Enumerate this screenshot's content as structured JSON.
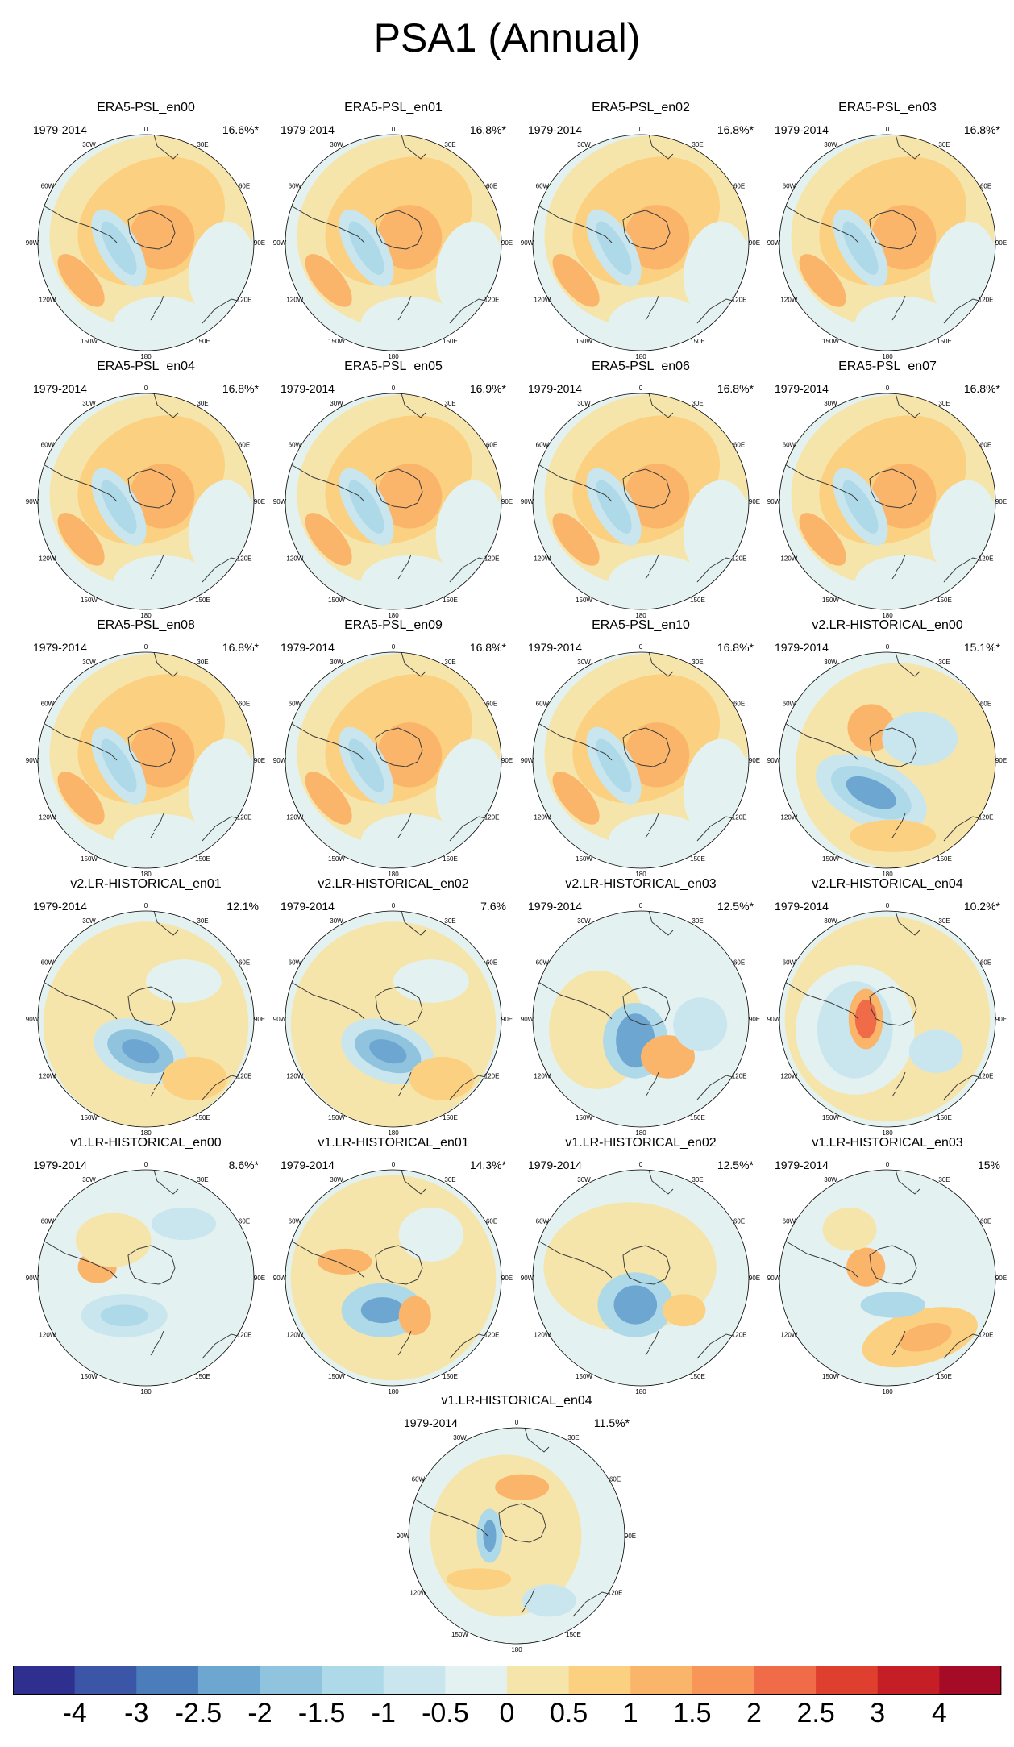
{
  "title": "PSA1 (Annual)",
  "colors": {
    "levels": [
      "#2e2f8f",
      "#3c56a7",
      "#4a7dba",
      "#6da6d0",
      "#8fc3de",
      "#aed9e8",
      "#c9e6ef",
      "#e3f2f1",
      "#f6e5ab",
      "#fbd081",
      "#fbb56a",
      "#f8965a",
      "#f06c48",
      "#de3f2e",
      "#c61e27",
      "#a50a26"
    ],
    "coast": "#3c3c3c"
  },
  "colorbar": {
    "labels": [
      "-4",
      "-3",
      "-2.5",
      "-2",
      "-1.5",
      "-1",
      "-0.5",
      "0",
      "0.5",
      "1",
      "1.5",
      "2",
      "2.5",
      "3",
      "4"
    ]
  },
  "lon_labels": [
    "0",
    "30E",
    "60E",
    "90E",
    "120E",
    "150E",
    "180",
    "150W",
    "120W",
    "90W",
    "60W",
    "30W"
  ],
  "panels": [
    {
      "title": "ERA5-PSL_en00",
      "period": "1979-2014",
      "pct": "16.6%*",
      "pattern": "era5"
    },
    {
      "title": "ERA5-PSL_en01",
      "period": "1979-2014",
      "pct": "16.8%*",
      "pattern": "era5"
    },
    {
      "title": "ERA5-PSL_en02",
      "period": "1979-2014",
      "pct": "16.8%*",
      "pattern": "era5"
    },
    {
      "title": "ERA5-PSL_en03",
      "period": "1979-2014",
      "pct": "16.8%*",
      "pattern": "era5"
    },
    {
      "title": "ERA5-PSL_en04",
      "period": "1979-2014",
      "pct": "16.8%*",
      "pattern": "era5"
    },
    {
      "title": "ERA5-PSL_en05",
      "period": "1979-2014",
      "pct": "16.9%*",
      "pattern": "era5"
    },
    {
      "title": "ERA5-PSL_en06",
      "period": "1979-2014",
      "pct": "16.8%*",
      "pattern": "era5"
    },
    {
      "title": "ERA5-PSL_en07",
      "period": "1979-2014",
      "pct": "16.8%*",
      "pattern": "era5"
    },
    {
      "title": "ERA5-PSL_en08",
      "period": "1979-2014",
      "pct": "16.8%*",
      "pattern": "era5"
    },
    {
      "title": "ERA5-PSL_en09",
      "period": "1979-2014",
      "pct": "16.8%*",
      "pattern": "era5"
    },
    {
      "title": "ERA5-PSL_en10",
      "period": "1979-2014",
      "pct": "16.8%*",
      "pattern": "era5"
    },
    {
      "title": "v2.LR-HISTORICAL_en00",
      "period": "1979-2014",
      "pct": "15.1%*",
      "pattern": "v2a"
    },
    {
      "title": "v2.LR-HISTORICAL_en01",
      "period": "1979-2014",
      "pct": "12.1%",
      "pattern": "v2b"
    },
    {
      "title": "v2.LR-HISTORICAL_en02",
      "period": "1979-2014",
      "pct": "7.6%",
      "pattern": "v2b"
    },
    {
      "title": "v2.LR-HISTORICAL_en03",
      "period": "1979-2014",
      "pct": "12.5%*",
      "pattern": "v2c"
    },
    {
      "title": "v2.LR-HISTORICAL_en04",
      "period": "1979-2014",
      "pct": "10.2%*",
      "pattern": "v2d"
    },
    {
      "title": "v1.LR-HISTORICAL_en00",
      "period": "1979-2014",
      "pct": "8.6%*",
      "pattern": "v1a"
    },
    {
      "title": "v1.LR-HISTORICAL_en01",
      "period": "1979-2014",
      "pct": "14.3%*",
      "pattern": "v1b"
    },
    {
      "title": "v1.LR-HISTORICAL_en02",
      "period": "1979-2014",
      "pct": "12.5%*",
      "pattern": "v1c"
    },
    {
      "title": "v1.LR-HISTORICAL_en03",
      "period": "1979-2014",
      "pct": "15%",
      "pattern": "v1d"
    },
    {
      "title": "v1.LR-HISTORICAL_en04",
      "period": "1979-2014",
      "pct": "11.5%*",
      "pattern": "v1e"
    }
  ]
}
